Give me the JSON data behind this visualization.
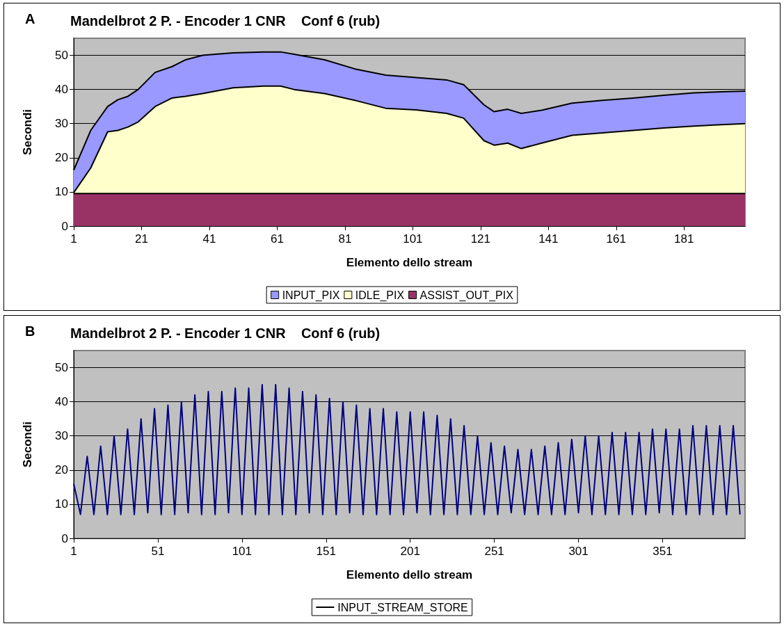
{
  "chart_data": [
    {
      "type": "area",
      "stacked": true,
      "title": "Mandelbrot 2 P. - Encoder 1 CNR    Conf 6 (rub)",
      "annotations": [
        "A"
      ],
      "xlabel": "Elemento dello stream",
      "ylabel": "Secondi",
      "x": [
        1,
        6,
        11,
        14,
        17,
        20,
        25,
        30,
        34,
        39,
        48,
        57,
        62,
        66,
        75,
        84,
        93,
        102,
        111,
        116,
        122,
        125,
        129,
        133,
        139,
        148,
        157,
        166,
        175,
        184,
        192,
        199
      ],
      "series": [
        {
          "name": "ASSIST_OUT_PIX",
          "color": "#993366",
          "values": [
            9.5,
            9.5,
            9.5,
            9.5,
            9.5,
            9.5,
            9.5,
            9.5,
            9.5,
            9.5,
            9.5,
            9.5,
            9.5,
            9.5,
            9.5,
            9.5,
            9.5,
            9.5,
            9.5,
            9.5,
            9.5,
            9.5,
            9.5,
            9.5,
            9.5,
            9.5,
            9.5,
            9.5,
            9.5,
            9.5,
            9.5,
            9.5
          ]
        },
        {
          "name": "IDLE_PIX",
          "color": "#ffffcc",
          "values": [
            0.3,
            7.5,
            18.1,
            18.5,
            19.5,
            21,
            25.5,
            28,
            28.5,
            29.3,
            31,
            31.5,
            31.5,
            30.5,
            29.3,
            27.3,
            25,
            24.5,
            23.5,
            22.1,
            15.5,
            14.2,
            14.8,
            13.2,
            14.8,
            17.1,
            17.8,
            18.5,
            19.2,
            19.8,
            20.2,
            20.5
          ]
        },
        {
          "name": "INPUT_PIX",
          "color": "#9999ff",
          "values": [
            6.6,
            11,
            7.4,
            9,
            9,
            9.5,
            10,
            9.2,
            10.7,
            11.2,
            10.2,
            10,
            10,
            10.3,
            9.9,
            9.2,
            9.7,
            9.5,
            9.8,
            9.8,
            10.5,
            9.8,
            9.9,
            10.3,
            9.6,
            9.4,
            9.5,
            9.5,
            9.6,
            9.7,
            9.6,
            9.5
          ]
        }
      ],
      "xlim": [
        1,
        199
      ],
      "xticks": [
        1,
        21,
        41,
        61,
        81,
        101,
        121,
        141,
        161,
        181
      ],
      "ylim": [
        0,
        55
      ],
      "yticks": [
        0,
        10,
        20,
        30,
        40,
        50
      ],
      "grid": "y",
      "legend": "bottom",
      "marker": "none"
    },
    {
      "type": "line",
      "title": "Mandelbrot 2 P. - Encoder 1 CNR    Conf 6 (rub)",
      "annotations": [
        "B"
      ],
      "xlabel": "Elemento dello stream",
      "ylabel": "Secondi",
      "x": [
        1,
        5,
        9,
        13,
        17,
        21,
        25,
        29,
        33,
        37,
        41,
        45,
        49,
        53,
        57,
        61,
        65,
        69,
        73,
        77,
        81,
        85,
        89,
        93,
        97,
        101,
        105,
        109,
        113,
        117,
        121,
        125,
        129,
        133,
        137,
        141,
        145,
        149,
        153,
        157,
        161,
        165,
        169,
        173,
        177,
        181,
        185,
        189,
        193,
        197,
        201,
        205,
        209,
        213,
        217,
        221,
        225,
        229,
        233,
        237,
        241,
        245,
        249,
        253,
        257,
        261,
        265,
        269,
        273,
        277,
        281,
        285,
        289,
        293,
        297,
        301,
        305,
        309,
        313,
        317,
        321,
        325,
        329,
        333,
        337,
        341,
        345,
        349,
        353,
        357,
        361,
        365,
        369,
        373,
        377,
        381,
        385,
        389,
        393,
        397
      ],
      "series": [
        {
          "name": "INPUT_STREAM_STORE",
          "color": "#000080",
          "values": [
            16,
            7,
            24,
            7,
            27,
            7,
            30,
            7,
            32,
            7,
            35,
            7.5,
            38,
            7,
            39,
            7,
            40,
            7.5,
            42,
            7,
            43,
            7,
            43,
            7.5,
            44,
            7,
            44,
            7,
            45,
            7,
            45,
            7,
            44,
            7,
            43,
            7.5,
            42,
            7,
            41,
            7,
            40,
            7.5,
            39,
            7,
            38,
            7,
            38,
            7,
            37,
            7,
            37,
            7.5,
            37,
            7,
            36,
            7,
            35,
            7,
            33,
            7,
            30,
            7,
            28,
            7,
            27,
            7.5,
            26,
            7,
            26,
            7,
            27,
            7,
            28,
            7,
            29,
            7.5,
            30,
            7,
            30,
            7,
            31,
            7,
            31,
            7,
            31,
            7,
            32,
            7.5,
            32,
            7,
            32,
            7,
            33,
            7,
            33,
            7,
            33,
            7,
            33,
            7
          ]
        }
      ],
      "xlim": [
        1,
        400
      ],
      "xticks": [
        1,
        51,
        101,
        151,
        201,
        251,
        301,
        351
      ],
      "ylim": [
        0,
        55
      ],
      "yticks": [
        0,
        10,
        20,
        30,
        40,
        50
      ],
      "grid": "y",
      "legend": "bottom",
      "marker": "none",
      "line_style": "solid"
    }
  ]
}
